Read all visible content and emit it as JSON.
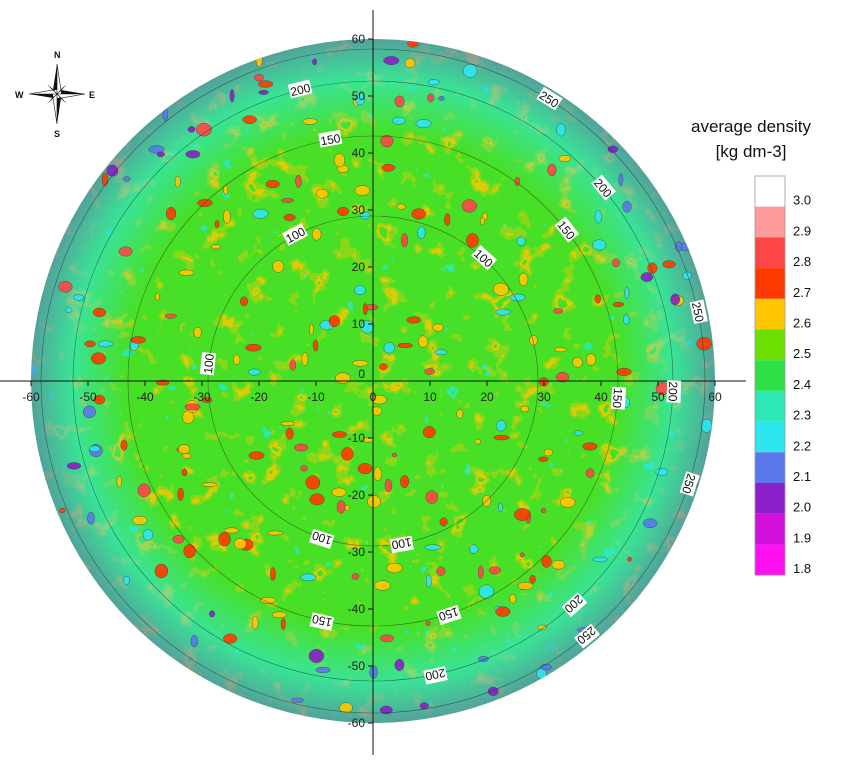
{
  "chart_data": {
    "type": "heatmap",
    "subtype": "polar density map",
    "x_ticks": [
      -60,
      -50,
      -40,
      -30,
      -20,
      -10,
      0,
      10,
      20,
      30,
      40,
      50,
      60
    ],
    "y_ticks": [
      60,
      50,
      40,
      30,
      20,
      10,
      0,
      -10,
      -20,
      -30,
      -40,
      -50,
      -60
    ],
    "xlim": [
      -60,
      60
    ],
    "ylim": [
      -60,
      60
    ],
    "contour_rings": [
      100,
      150,
      200,
      250
    ],
    "ring_labels": [
      {
        "text": "200",
        "ring": 200
      },
      {
        "text": "250",
        "ring": 250
      },
      {
        "text": "150",
        "ring": 150
      },
      {
        "text": "200",
        "ring": 200
      },
      {
        "text": "100",
        "ring": 100
      },
      {
        "text": "150",
        "ring": 150
      },
      {
        "text": "250",
        "ring": 250
      },
      {
        "text": "100",
        "ring": 100
      },
      {
        "text": "200",
        "ring": 200
      },
      {
        "text": "100",
        "ring": 100
      },
      {
        "text": "150",
        "ring": 150
      },
      {
        "text": "250",
        "ring": 250
      },
      {
        "text": "100",
        "ring": 100
      },
      {
        "text": "200",
        "ring": 200
      },
      {
        "text": "100",
        "ring": 100
      },
      {
        "text": "150",
        "ring": 150
      },
      {
        "text": "250",
        "ring": 250
      },
      {
        "text": "200",
        "ring": 200
      },
      {
        "text": "150",
        "ring": 150
      }
    ],
    "legend": {
      "title_line1": "average density",
      "title_line2": "[kg dm-3]",
      "levels": [
        {
          "value": "3.0",
          "color": "#ffffff"
        },
        {
          "value": "2.9",
          "color": "#ff9a9a"
        },
        {
          "value": "2.8",
          "color": "#ff4646"
        },
        {
          "value": "2.7",
          "color": "#ff3a00"
        },
        {
          "value": "2.6",
          "color": "#ffc800"
        },
        {
          "value": "2.5",
          "color": "#6be000"
        },
        {
          "value": "2.4",
          "color": "#2ce046"
        },
        {
          "value": "2.3",
          "color": "#2ee8b6"
        },
        {
          "value": "2.2",
          "color": "#2ee6f0"
        },
        {
          "value": "2.1",
          "color": "#5a78ea"
        },
        {
          "value": "2.0",
          "color": "#8a1ec8"
        },
        {
          "value": "1.9",
          "color": "#d010d8"
        },
        {
          "value": "1.8",
          "color": "#ff10f0"
        }
      ]
    }
  },
  "compass": {
    "n": "N",
    "s": "S",
    "e": "E",
    "w": "W"
  }
}
